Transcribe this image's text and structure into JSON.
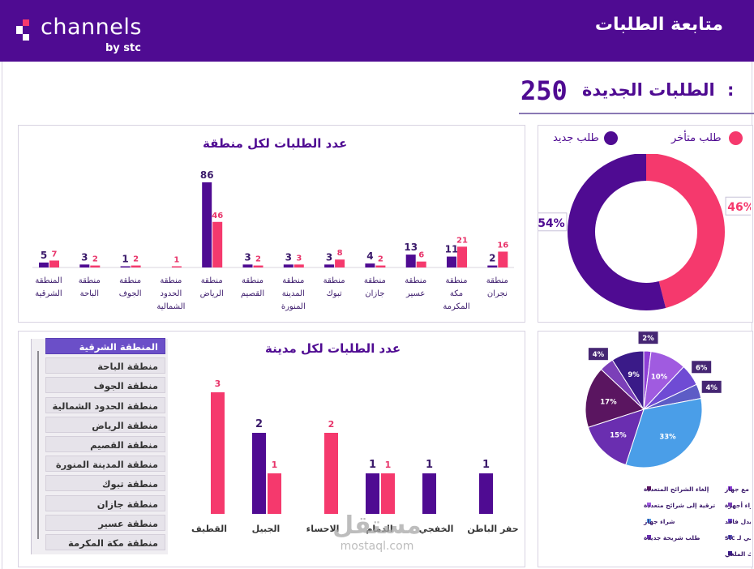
{
  "header": {
    "brand_name": "channels",
    "brand_sub": "by stc",
    "title": "متابعة الطلبات"
  },
  "summary": {
    "label": "الطلبات الجديدة",
    "colon": ":",
    "value": "250"
  },
  "status_legend": {
    "late": "طلب متأخر",
    "new": "طلب جديد"
  },
  "colors": {
    "purple": "#4f0b92",
    "pink": "#f5396d",
    "header": "#4f0b92",
    "slicer_active": "#6b4fc8"
  },
  "region_slicer": {
    "items": [
      "المنطقة الشرقية",
      "منطقة الباحة",
      "منطقة الجوف",
      "منطقة الحدود الشمالية",
      "منطقة الرياض",
      "منطقة القصيم",
      "منطقة المدينة المنورة",
      "منطقة تبوك",
      "منطقة جازان",
      "منطقة عسير",
      "منطقة مكة المكرمة"
    ],
    "selected": "المنطقة الشرقية"
  },
  "watermark": {
    "ar": "مستقل",
    "en": "mostaql.com"
  },
  "chart_data": [
    {
      "type": "bar",
      "title": "عدد الطلبات لكل منطقة",
      "categories": [
        [
          "المنطقة",
          "الشرقية"
        ],
        [
          "منطقة",
          "الباحة"
        ],
        [
          "منطقة",
          "الجوف"
        ],
        [
          "منطقة",
          "الحدود",
          "الشمالية"
        ],
        [
          "منطقة",
          "الرياض"
        ],
        [
          "منطقة",
          "القصيم"
        ],
        [
          "منطقة",
          "المدينة",
          "المنورة"
        ],
        [
          "منطقة",
          "تبوك"
        ],
        [
          "منطقة",
          "جازان"
        ],
        [
          "منطقة",
          "عسير"
        ],
        [
          "منطقة",
          "مكة",
          "المكرمة"
        ],
        [
          "منطقة",
          "نجران"
        ]
      ],
      "series": [
        {
          "name": "طلب جديد",
          "color": "#4f0b92",
          "values": [
            5,
            3,
            1,
            null,
            86,
            3,
            3,
            3,
            4,
            13,
            11,
            2
          ]
        },
        {
          "name": "طلب متأخر",
          "color": "#f5396d",
          "values": [
            7,
            2,
            2,
            1,
            46,
            2,
            3,
            8,
            2,
            6,
            21,
            16
          ]
        }
      ],
      "ylim": [
        0,
        90
      ]
    },
    {
      "type": "pie",
      "subtype": "donut",
      "slices": [
        {
          "name": "طلب متأخر",
          "value": 46,
          "label": "46%",
          "color": "#f5396d"
        },
        {
          "name": "طلب جديد",
          "value": 54,
          "label": "54%",
          "color": "#4f0b92"
        }
      ]
    },
    {
      "type": "bar",
      "title": "عدد الطلبات لكل مدينة",
      "categories": [
        "القطيف",
        "الجبيل",
        "الاحساء",
        "الدمام",
        "الخفجي",
        "حفر الباطن"
      ],
      "series": [
        {
          "name": "طلب جديد",
          "color": "#4f0b92",
          "values": [
            null,
            2,
            null,
            1,
            1,
            1
          ]
        },
        {
          "name": "طلب متأخر",
          "color": "#f5396d",
          "values": [
            3,
            1,
            2,
            1,
            null,
            null
          ]
        }
      ],
      "ylim": [
        0,
        3.3
      ]
    },
    {
      "type": "pie",
      "slices": [
        {
          "name": "باقة شريحة بيانات مع جهاز",
          "value": 2,
          "label": "2%",
          "color": "#8e3fd6"
        },
        {
          "name": "ترقية إلى شرائح متعددة",
          "value": 10,
          "label": "10%",
          "color": "#a05be0"
        },
        {
          "name": "طلب شريحة بدل فاقد",
          "value": 6,
          "label": "6%",
          "color": "#6f4bd4"
        },
        {
          "name": "نقل رقمي لـ stc",
          "value": 4,
          "label": "4%",
          "color": "#5d5cc6"
        },
        {
          "name": "شراء جهاز",
          "value": 33,
          "label": "33%",
          "color": "#4a9ee8"
        },
        {
          "name": "طلب شريحة جديدة",
          "value": 15,
          "label": "15%",
          "color": "#6a2eb0"
        },
        {
          "name": "إلغاء الشرائح المتعددة",
          "value": 17,
          "label": "17%",
          "color": "#5a1560"
        },
        {
          "name": "شراء أجهزة",
          "value": 4,
          "label": "4%",
          "color": "#7b3fb8"
        },
        {
          "name": "اعادة اصدار لرقمك الملغي",
          "value": 9,
          "label": "9%",
          "color": "#3a1a88"
        }
      ],
      "legend_order": [
        "باقة شريحة بيانات مع جهاز",
        "إلغاء الشرائح المتعددة",
        "شراء أجهزة",
        "ترقية إلى شرائح متعددة",
        "طلب شريحة بدل فاقد",
        "شراء جهاز",
        "نقل رقمي لـ stc",
        "طلب شريحة جديدة",
        "اعادة اصدار لرقمك الملغي"
      ]
    }
  ]
}
